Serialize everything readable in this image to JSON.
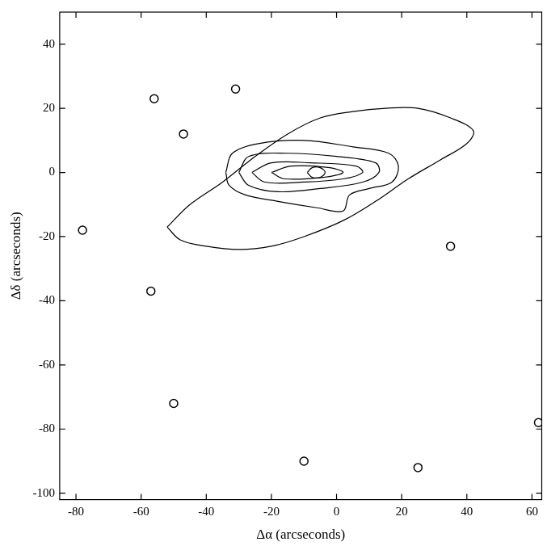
{
  "chart_data": {
    "type": "scatter",
    "x_label": "Δα (arcseconds)",
    "y_label": "Δδ (arcseconds)",
    "xlim": [
      -85,
      63
    ],
    "ylim": [
      -102,
      50
    ],
    "xticks": [
      -80,
      -60,
      -40,
      -20,
      0,
      20,
      40,
      60
    ],
    "yticks": [
      -100,
      -80,
      -60,
      -40,
      -20,
      0,
      20,
      40
    ],
    "grid": false,
    "series": [
      {
        "color": "#000000",
        "marker": "none",
        "line_style": "solid",
        "values": [
          [
            -52,
            -17
          ],
          [
            -45,
            -10
          ],
          [
            -35,
            -3
          ],
          [
            -25,
            5
          ],
          [
            -15,
            12
          ],
          [
            -5,
            17
          ],
          [
            5,
            19
          ],
          [
            15,
            20
          ],
          [
            25,
            20
          ],
          [
            35,
            17
          ],
          [
            42,
            13
          ],
          [
            40,
            9
          ],
          [
            32,
            4
          ],
          [
            22,
            -2
          ],
          [
            12,
            -9
          ],
          [
            2,
            -15
          ],
          [
            -10,
            -20
          ],
          [
            -20,
            -23
          ],
          [
            -30,
            -24
          ],
          [
            -40,
            -23
          ],
          [
            -48,
            -21
          ],
          [
            -52,
            -17
          ]
        ]
      },
      {
        "color": "#000000",
        "marker": "none",
        "line_style": "solid",
        "values": [
          [
            -34,
            0
          ],
          [
            -32,
            6
          ],
          [
            -24,
            9
          ],
          [
            -10,
            10
          ],
          [
            5,
            8
          ],
          [
            16,
            6
          ],
          [
            19,
            2
          ],
          [
            17,
            -3
          ],
          [
            10,
            -5
          ],
          [
            4,
            -7
          ],
          [
            2,
            -12
          ],
          [
            -6,
            -11
          ],
          [
            -18,
            -9
          ],
          [
            -28,
            -7
          ],
          [
            -33,
            -4
          ],
          [
            -34,
            0
          ]
        ]
      },
      {
        "color": "#000000",
        "marker": "none",
        "line_style": "solid",
        "values": [
          [
            -30,
            0
          ],
          [
            -27,
            5
          ],
          [
            -15,
            6
          ],
          [
            0,
            5
          ],
          [
            12,
            3
          ],
          [
            13,
            0
          ],
          [
            8,
            -3
          ],
          [
            -5,
            -5
          ],
          [
            -18,
            -6
          ],
          [
            -27,
            -4
          ],
          [
            -30,
            0
          ]
        ]
      },
      {
        "color": "#000000",
        "marker": "none",
        "line_style": "solid",
        "values": [
          [
            -26,
            0
          ],
          [
            -20,
            3
          ],
          [
            -8,
            3
          ],
          [
            6,
            2
          ],
          [
            8,
            0
          ],
          [
            2,
            -2
          ],
          [
            -10,
            -3
          ],
          [
            -22,
            -3
          ],
          [
            -26,
            0
          ]
        ]
      },
      {
        "color": "#000000",
        "marker": "none",
        "line_style": "solid",
        "values": [
          [
            -20,
            0
          ],
          [
            -14,
            2
          ],
          [
            -2,
            1.5
          ],
          [
            2,
            0
          ],
          [
            -4,
            -1.5
          ],
          [
            -16,
            -2
          ],
          [
            -20,
            0
          ]
        ]
      },
      {
        "color": "#000000",
        "marker": "none",
        "line_style": "solid",
        "values": [
          [
            -9,
            0
          ],
          [
            -7.5,
            1.5
          ],
          [
            -5,
            1.5
          ],
          [
            -3.5,
            0
          ],
          [
            -5,
            -1.5
          ],
          [
            -7.5,
            -1.5
          ],
          [
            -9,
            0
          ]
        ]
      },
      {
        "color": "#000000",
        "marker": "circle",
        "line_style": "none",
        "values": [
          [
            -56,
            23
          ],
          [
            -31,
            26
          ],
          [
            -47,
            12
          ],
          [
            -78,
            -18
          ],
          [
            -57,
            -37
          ],
          [
            35,
            -23
          ],
          [
            -50,
            -72
          ],
          [
            -10,
            -90
          ],
          [
            25,
            -92
          ],
          [
            62,
            -78
          ]
        ]
      }
    ]
  }
}
